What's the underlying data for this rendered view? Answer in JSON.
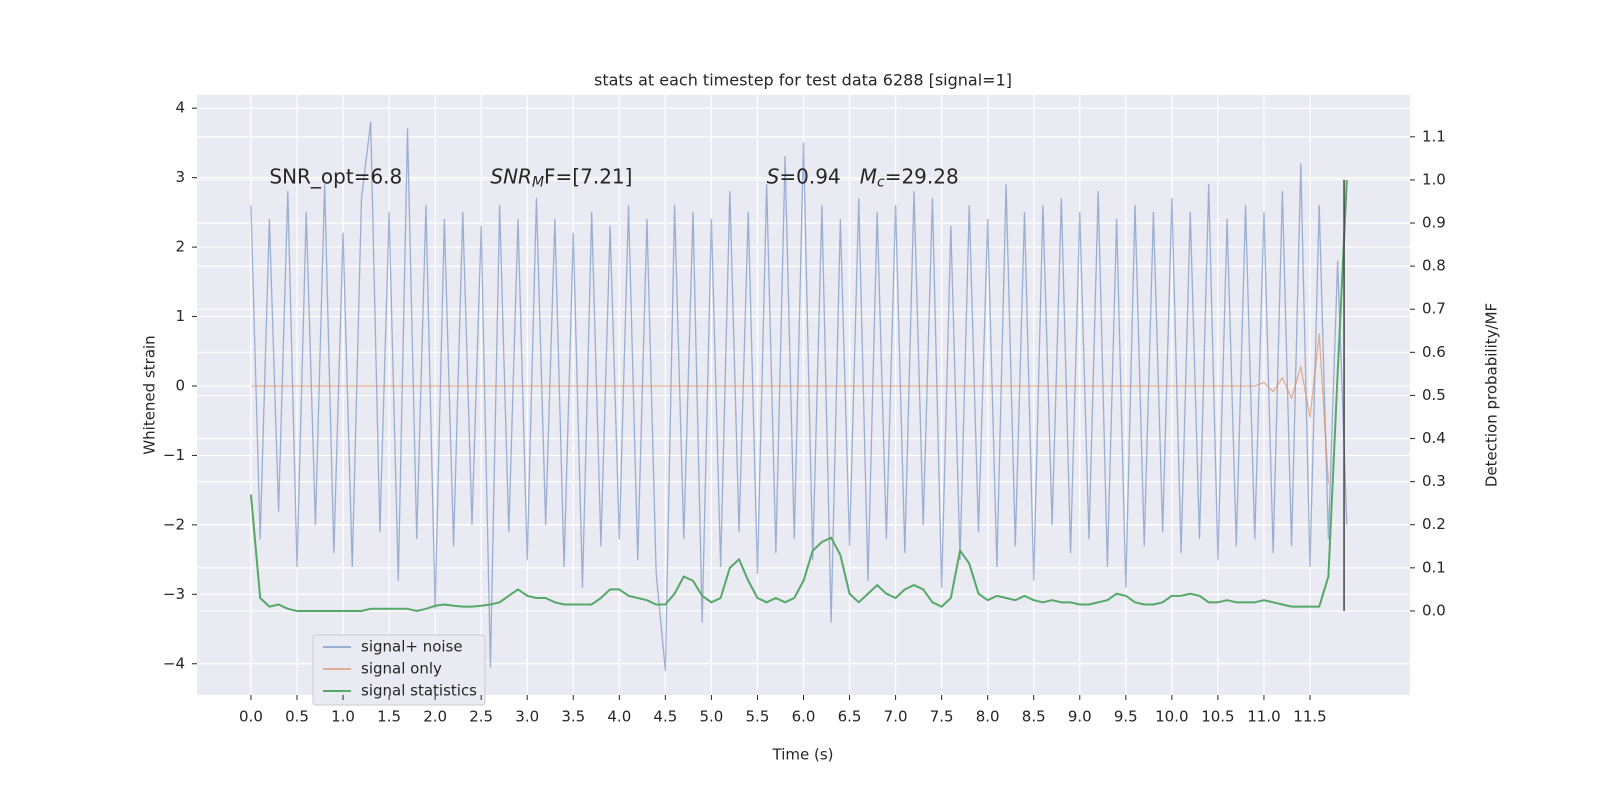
{
  "chart_data": {
    "type": "line",
    "title": "stats at each timestep for test data 6288 [signal=1]",
    "xlabel": "Time (s)",
    "ylabel": "Whitened strain",
    "y2label": "Detection probability/MF",
    "grid": true,
    "legend": "lower left",
    "xlim": [
      -0.586,
      12.586
    ],
    "ylim": [
      -4.45,
      4.19
    ],
    "y2lim": [
      -0.195,
      1.197
    ],
    "xticks": [
      {
        "value": 0,
        "label": "0.0"
      },
      0.5,
      {
        "value": 1,
        "label": "1.0"
      },
      1.5,
      {
        "value": 2,
        "label": "2.0"
      },
      2.5,
      {
        "value": 3,
        "label": "3.0"
      },
      3.5,
      {
        "value": 4,
        "label": "4.0"
      },
      4.5,
      {
        "value": 5,
        "label": "5.0"
      },
      5.5,
      {
        "value": 6,
        "label": "6.0"
      },
      6.5,
      {
        "value": 7,
        "label": "7.0"
      },
      7.5,
      {
        "value": 8,
        "label": "8.0"
      },
      8.5,
      {
        "value": 9,
        "label": "9.0"
      },
      9.5,
      {
        "value": 10,
        "label": "10.0"
      },
      10.5,
      {
        "value": 11,
        "label": "11.0"
      },
      11.5
    ],
    "yticks": [
      4,
      3,
      2,
      1,
      0,
      {
        "value": -1,
        "label": "−1"
      },
      {
        "value": -2,
        "label": "−2"
      },
      {
        "value": -3,
        "label": "−3"
      },
      {
        "value": -4,
        "label": "−4"
      }
    ],
    "y2ticks": [
      {
        "value": 0,
        "label": "0.0"
      },
      0.1,
      0.2,
      0.3,
      0.4,
      0.5,
      0.6,
      0.7,
      0.8,
      0.9,
      {
        "value": 1,
        "label": "1.0"
      },
      1.1
    ],
    "x": [
      0,
      0.1,
      0.2,
      0.3,
      0.4,
      0.5,
      0.6,
      0.7,
      0.8,
      0.9,
      1,
      1.1,
      1.2,
      1.3,
      1.4,
      1.5,
      1.6,
      1.7,
      1.8,
      1.9,
      2,
      2.1,
      2.2,
      2.3,
      2.4,
      2.5,
      2.6,
      2.7,
      2.8,
      2.9,
      3,
      3.1,
      3.2,
      3.3,
      3.4,
      3.5,
      3.6,
      3.7,
      3.8,
      3.9,
      4,
      4.1,
      4.2,
      4.3,
      4.4,
      4.5,
      4.6,
      4.7,
      4.8,
      4.9,
      5,
      5.1,
      5.2,
      5.3,
      5.4,
      5.5,
      5.6,
      5.7,
      5.8,
      5.9,
      6,
      6.1,
      6.2,
      6.3,
      6.4,
      6.5,
      6.6,
      6.7,
      6.8,
      6.9,
      7,
      7.1,
      7.2,
      7.3,
      7.4,
      7.5,
      7.6,
      7.7,
      7.8,
      7.9,
      8,
      8.1,
      8.2,
      8.3,
      8.4,
      8.5,
      8.6,
      8.7,
      8.8,
      8.9,
      9,
      9.1,
      9.2,
      9.3,
      9.4,
      9.5,
      9.6,
      9.7,
      9.8,
      9.9,
      10,
      10.1,
      10.2,
      10.3,
      10.4,
      10.5,
      10.6,
      10.7,
      10.8,
      10.9,
      11,
      11.1,
      11.2,
      11.3,
      11.4,
      11.5,
      11.6,
      11.7,
      11.8,
      11.9
    ],
    "series": [
      {
        "name": "signal+ noise",
        "color": "#4c72b0",
        "opacity": 0.5,
        "axis": "y",
        "values": [
          2.6,
          -2.2,
          2.4,
          -1.8,
          2.8,
          -2.6,
          2.5,
          -2.0,
          2.9,
          -2.4,
          2.2,
          -2.6,
          2.7,
          3.8,
          -2.1,
          2.5,
          -2.8,
          3.7,
          -2.2,
          2.6,
          -3.2,
          2.4,
          -2.3,
          2.5,
          -2.0,
          2.3,
          -4.05,
          2.6,
          -2.1,
          2.4,
          -2.5,
          2.7,
          -2.0,
          2.4,
          -2.6,
          2.2,
          -2.9,
          2.5,
          -2.3,
          2.3,
          -2.2,
          2.6,
          -2.5,
          2.4,
          -2.7,
          -4.1,
          2.6,
          -2.2,
          2.5,
          -3.4,
          2.4,
          -2.6,
          2.8,
          -2.1,
          2.5,
          -2.7,
          2.9,
          -2.4,
          3.3,
          -2.2,
          3.5,
          -2.5,
          2.6,
          -3.4,
          2.4,
          -2.3,
          2.7,
          -2.8,
          2.5,
          -2.2,
          2.6,
          -2.4,
          2.8,
          -2.0,
          2.7,
          -2.9,
          2.3,
          -2.5,
          2.6,
          -2.1,
          2.4,
          -2.6,
          2.9,
          -2.3,
          2.5,
          -2.8,
          2.6,
          -2.0,
          2.7,
          -2.4,
          2.5,
          -2.2,
          2.8,
          -2.6,
          2.4,
          -2.9,
          2.6,
          -2.3,
          2.5,
          -2.1,
          2.7,
          -2.4,
          2.5,
          -2.2,
          2.9,
          -2.5,
          2.4,
          -2.3,
          2.6,
          -2.2,
          2.5,
          -2.4,
          2.8,
          -2.3,
          3.2,
          -2.6,
          2.6,
          -2.2,
          1.8,
          -2.0
        ]
      },
      {
        "name": "signal only",
        "color": "#dd8452",
        "opacity": 0.6,
        "axis": "y",
        "values": [
          0,
          0,
          0,
          0,
          0,
          0,
          0,
          0,
          0,
          0,
          0,
          0,
          0,
          0,
          0,
          0,
          0,
          0,
          0,
          0,
          0,
          0,
          0,
          0,
          0,
          0,
          0,
          0,
          0,
          0,
          0,
          0,
          0,
          0,
          0,
          0,
          0,
          0,
          0,
          0,
          0,
          0,
          0,
          0,
          0,
          0,
          0,
          0,
          0,
          0,
          0,
          0,
          0,
          0,
          0,
          0,
          0,
          0,
          0,
          0,
          0,
          0,
          0,
          0,
          0,
          0,
          0,
          0,
          0,
          0,
          0,
          0,
          0,
          0,
          0,
          0,
          0,
          0,
          0,
          0,
          0,
          0,
          0,
          0,
          0,
          0,
          0,
          0,
          0,
          0,
          0,
          0,
          0,
          0,
          0,
          0,
          0,
          0,
          0,
          0,
          0,
          0,
          0,
          0,
          0,
          0,
          0,
          0,
          0,
          0,
          0.05,
          -0.08,
          0.12,
          -0.18,
          0.28,
          -0.45,
          0.75,
          -1.4,
          null,
          null
        ]
      },
      {
        "name": "signal statistics",
        "color": "#55a868",
        "opacity": 1,
        "axis": "y2",
        "values": [
          0.27,
          0.03,
          0.01,
          0.015,
          0.005,
          0.0,
          0.0,
          0.0,
          0.0,
          0.0,
          0.0,
          0.0,
          0.0,
          0.005,
          0.005,
          0.005,
          0.005,
          0.005,
          0.0,
          0.005,
          0.012,
          0.015,
          0.012,
          0.01,
          0.01,
          0.012,
          0.015,
          0.02,
          0.035,
          0.05,
          0.035,
          0.03,
          0.03,
          0.02,
          0.015,
          0.015,
          0.015,
          0.015,
          0.03,
          0.05,
          0.05,
          0.035,
          0.03,
          0.025,
          0.015,
          0.015,
          0.04,
          0.08,
          0.07,
          0.035,
          0.02,
          0.03,
          0.1,
          0.12,
          0.07,
          0.03,
          0.02,
          0.03,
          0.02,
          0.03,
          0.07,
          0.14,
          0.16,
          0.17,
          0.13,
          0.04,
          0.02,
          0.04,
          0.06,
          0.04,
          0.03,
          0.05,
          0.06,
          0.05,
          0.02,
          0.01,
          0.03,
          0.14,
          0.11,
          0.04,
          0.025,
          0.035,
          0.03,
          0.025,
          0.035,
          0.025,
          0.02,
          0.025,
          0.02,
          0.02,
          0.015,
          0.015,
          0.02,
          0.025,
          0.04,
          0.035,
          0.02,
          0.015,
          0.015,
          0.02,
          0.035,
          0.035,
          0.04,
          0.035,
          0.02,
          0.02,
          0.025,
          0.02,
          0.02,
          0.02,
          0.025,
          0.02,
          0.015,
          0.01,
          0.01,
          0.01,
          0.01,
          0.08,
          0.55,
          1.0
        ]
      }
    ],
    "vlines": [
      {
        "x": 11.87,
        "y2range": [
          0,
          1
        ],
        "color": "#444444"
      }
    ],
    "annotations": [
      {
        "x": 0.2,
        "y": 3,
        "parts": [
          {
            "text": "SNR_opt=6.8",
            "style": "normal"
          }
        ]
      },
      {
        "x": 2.6,
        "y": 3,
        "parts": [
          {
            "text": "SNR",
            "style": "italic"
          },
          {
            "text": "M",
            "style": "italic-sub"
          },
          {
            "text": "F=[7.21]",
            "style": "italic-first"
          }
        ]
      },
      {
        "x": 5.6,
        "y": 3,
        "parts": [
          {
            "text": "S",
            "style": "italic"
          },
          {
            "text": "=0.94   ",
            "style": "normal"
          },
          {
            "text": "M",
            "style": "italic"
          },
          {
            "text": "c",
            "style": "italic-sub"
          },
          {
            "text": "=29.28",
            "style": "normal"
          }
        ]
      }
    ]
  }
}
